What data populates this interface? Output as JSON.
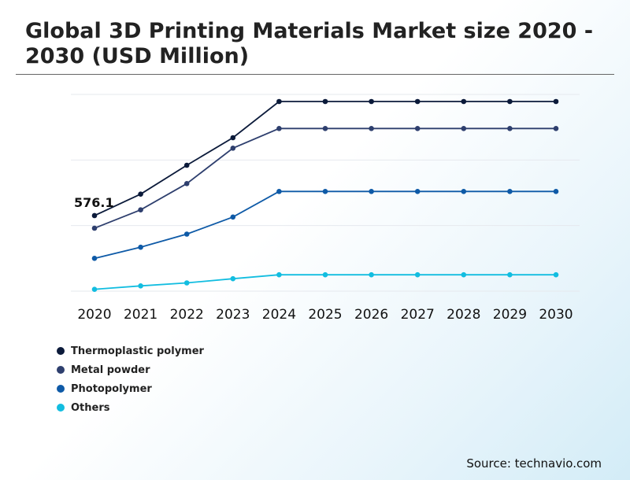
{
  "chart_data": {
    "type": "line",
    "title": "Global 3D Printing Materials Market size 2020 - 2030 (USD Million)",
    "xlabel": "",
    "ylabel": "",
    "categories": [
      "2020",
      "2021",
      "2022",
      "2023",
      "2024",
      "2025",
      "2026",
      "2027",
      "2028",
      "2029",
      "2030"
    ],
    "series": [
      {
        "name": "Thermoplastic polymer",
        "color": "#0b1a3a",
        "values": [
          576.1,
          740,
          960,
          1170,
          1446,
          1446,
          1446,
          1446,
          1446,
          1446,
          1446
        ]
      },
      {
        "name": "Metal powder",
        "color": "#2e3f6e",
        "values": [
          480,
          620,
          820,
          1090,
          1240,
          1240,
          1240,
          1240,
          1240,
          1240,
          1240
        ]
      },
      {
        "name": "Photopolymer",
        "color": "#0e5aa7",
        "values": [
          250,
          335,
          435,
          565,
          760,
          760,
          760,
          760,
          760,
          760,
          760
        ]
      },
      {
        "name": "Others",
        "color": "#12bde0",
        "values": [
          14,
          40,
          63,
          95,
          125,
          125,
          125,
          125,
          125,
          125,
          125
        ]
      }
    ],
    "annotations": [
      {
        "series": 0,
        "index": 0,
        "text": "576.1"
      }
    ],
    "ylim": [
      0,
      1500
    ],
    "grid": true,
    "legend": "bottom-left"
  },
  "source": "Source: technavio.com"
}
